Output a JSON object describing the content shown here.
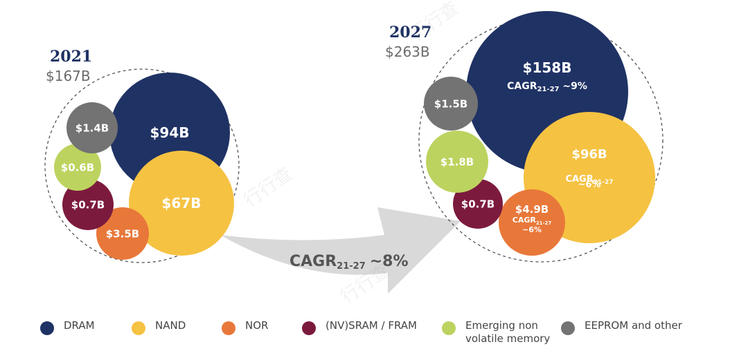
{
  "chart_data": {
    "type": "bubble",
    "unit": "USD billions",
    "panels": [
      {
        "year": "2021",
        "total_label": "$167B",
        "total": 167,
        "bubbles": [
          {
            "category": "DRAM",
            "value": 94,
            "label": "$94B"
          },
          {
            "category": "NAND",
            "value": 67,
            "label": "$67B"
          },
          {
            "category": "NOR",
            "value": 3.5,
            "label": "$3.5B"
          },
          {
            "category": "(NV)SRAM / FRAM",
            "value": 0.7,
            "label": "$0.7B"
          },
          {
            "category": "Emerging non volatile memory",
            "value": 0.6,
            "label": "$0.6B"
          },
          {
            "category": "EEPROM and other",
            "value": 1.4,
            "label": "$1.4B"
          }
        ]
      },
      {
        "year": "2027",
        "total_label": "$263B",
        "total": 263,
        "bubbles": [
          {
            "category": "DRAM",
            "value": 158,
            "label": "$158B",
            "cagr_prefix": "CAGR",
            "cagr_sub": "21-27",
            "cagr_value": "~9%"
          },
          {
            "category": "NAND",
            "value": 96,
            "label": "$96B",
            "cagr_prefix": "CAGR",
            "cagr_sub": "21-27",
            "cagr_value": "~6%"
          },
          {
            "category": "NOR",
            "value": 4.9,
            "label": "$4.9B",
            "cagr_prefix": "CAGR",
            "cagr_sub": "21-27",
            "cagr_value": "~6%"
          },
          {
            "category": "(NV)SRAM / FRAM",
            "value": 0.7,
            "label": "$0.7B"
          },
          {
            "category": "Emerging non volatile memory",
            "value": 1.8,
            "label": "$1.8B"
          },
          {
            "category": "EEPROM and other",
            "value": 1.5,
            "label": "$1.5B"
          }
        ]
      }
    ],
    "overall_cagr": {
      "prefix": "CAGR",
      "sub": "21-27",
      "value": "~8%"
    },
    "legend": [
      {
        "name": "DRAM",
        "color": "#1f3264"
      },
      {
        "name": "NAND",
        "color": "#f5c242"
      },
      {
        "name": "NOR",
        "color": "#e8783a"
      },
      {
        "name": "(NV)SRAM / FRAM",
        "color": "#7c1a3e"
      },
      {
        "name": "Emerging non volatile memory",
        "line1": "Emerging non",
        "line2": "volatile memory",
        "color": "#bcd35f"
      },
      {
        "name": "EEPROM and other",
        "color": "#737373"
      }
    ]
  }
}
